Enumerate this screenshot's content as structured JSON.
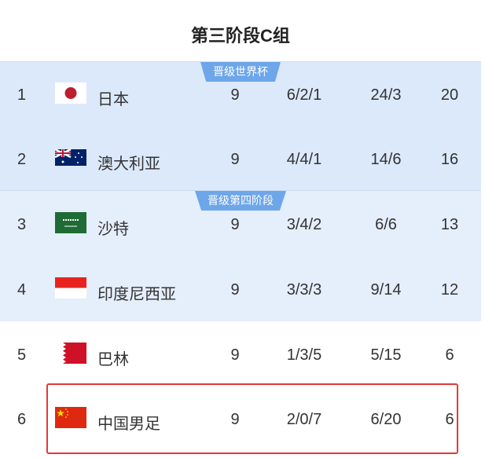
{
  "title": "第三阶段C组",
  "zones": [
    {
      "label": "晋级世界杯",
      "color": "#dce9fa"
    },
    {
      "label": "晋级第四阶段",
      "color": "#e5eefb"
    }
  ],
  "rows": [
    {
      "rank": "1",
      "team": "日本",
      "flag": "japan-flag",
      "played": "9",
      "wdl": "6/2/1",
      "goals": "24/3",
      "points": "20"
    },
    {
      "rank": "2",
      "team": "澳大利亚",
      "flag": "australia-flag",
      "played": "9",
      "wdl": "4/4/1",
      "goals": "14/6",
      "points": "16"
    },
    {
      "rank": "3",
      "team": "沙特",
      "flag": "saudi-arabia-flag",
      "played": "9",
      "wdl": "3/4/2",
      "goals": "6/6",
      "points": "13"
    },
    {
      "rank": "4",
      "team": "印度尼西亚",
      "flag": "indonesia-flag",
      "played": "9",
      "wdl": "3/3/3",
      "goals": "9/14",
      "points": "12"
    },
    {
      "rank": "5",
      "team": "巴林",
      "flag": "bahrain-flag",
      "played": "9",
      "wdl": "1/3/5",
      "goals": "5/15",
      "points": "6"
    },
    {
      "rank": "6",
      "team": "中国男足",
      "flag": "china-flag",
      "played": "9",
      "wdl": "2/0/7",
      "goals": "6/20",
      "points": "6",
      "highlighted": true
    }
  ],
  "highlight_color": "#e53935"
}
